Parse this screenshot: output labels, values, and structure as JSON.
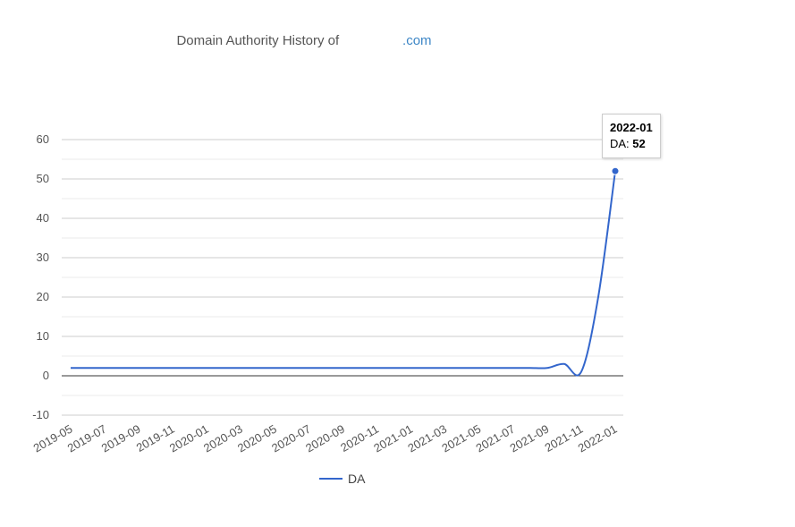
{
  "chart_data": {
    "type": "line",
    "title_prefix": "Domain Authority History of",
    "title_domain": ".com",
    "x_labels": [
      "2019-05",
      "2019-07",
      "2019-09",
      "2019-11",
      "2020-01",
      "2020-03",
      "2020-05",
      "2020-07",
      "2020-09",
      "2020-11",
      "2021-01",
      "2021-03",
      "2021-05",
      "2021-07",
      "2021-09",
      "2021-11",
      "2022-01"
    ],
    "x_months": [
      "2019-05",
      "2019-06",
      "2019-07",
      "2019-08",
      "2019-09",
      "2019-10",
      "2019-11",
      "2019-12",
      "2020-01",
      "2020-02",
      "2020-03",
      "2020-04",
      "2020-05",
      "2020-06",
      "2020-07",
      "2020-08",
      "2020-09",
      "2020-10",
      "2020-11",
      "2020-12",
      "2021-01",
      "2021-02",
      "2021-03",
      "2021-04",
      "2021-05",
      "2021-06",
      "2021-07",
      "2021-08",
      "2021-09",
      "2021-10",
      "2021-11",
      "2021-12",
      "2022-01"
    ],
    "series": [
      {
        "name": "DA",
        "color": "#3366cc",
        "values": [
          2,
          2,
          2,
          2,
          2,
          2,
          2,
          2,
          2,
          2,
          2,
          2,
          2,
          2,
          2,
          2,
          2,
          2,
          2,
          2,
          2,
          2,
          2,
          2,
          2,
          2,
          2,
          2,
          2,
          3,
          1,
          20,
          52
        ]
      }
    ],
    "y_ticks": [
      60,
      50,
      40,
      30,
      20,
      10,
      0,
      -10
    ],
    "ylim": [
      -10,
      60
    ],
    "grid": true,
    "legend": "bottom",
    "tooltip": {
      "label": "2022-01",
      "series_label": "DA:",
      "value": "52"
    }
  }
}
